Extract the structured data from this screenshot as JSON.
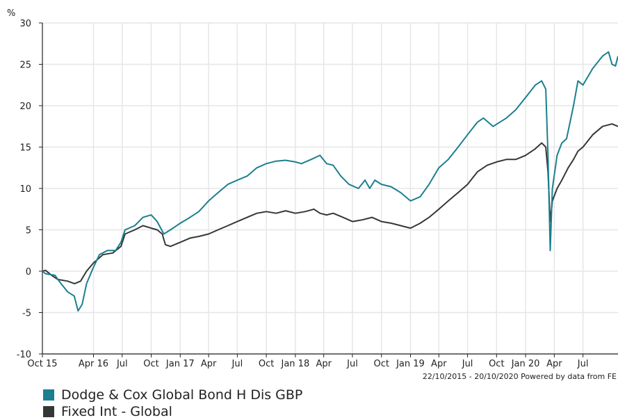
{
  "chart_data": {
    "type": "line",
    "ylabel": "%",
    "ylim": [
      -10,
      30
    ],
    "yticks": [
      -10,
      -5,
      0,
      5,
      10,
      15,
      20,
      25,
      30
    ],
    "xlim": [
      "2015-10-22",
      "2020-10-20"
    ],
    "xticks": [
      {
        "label": "Oct 15",
        "date": "2015-10-22"
      },
      {
        "label": "Apr 16",
        "date": "2016-04-01"
      },
      {
        "label": "Jul",
        "date": "2016-07-01"
      },
      {
        "label": "Oct",
        "date": "2016-10-01"
      },
      {
        "label": "Jan 17",
        "date": "2017-01-01"
      },
      {
        "label": "Apr",
        "date": "2017-04-01"
      },
      {
        "label": "Jul",
        "date": "2017-07-01"
      },
      {
        "label": "Oct",
        "date": "2017-10-01"
      },
      {
        "label": "Jan 18",
        "date": "2018-01-01"
      },
      {
        "label": "Apr",
        "date": "2018-04-01"
      },
      {
        "label": "Jul",
        "date": "2018-07-01"
      },
      {
        "label": "Oct",
        "date": "2018-10-01"
      },
      {
        "label": "Jan 19",
        "date": "2019-01-01"
      },
      {
        "label": "Apr",
        "date": "2019-04-01"
      },
      {
        "label": "Jul",
        "date": "2019-07-01"
      },
      {
        "label": "Oct",
        "date": "2019-10-01"
      },
      {
        "label": "Jan 20",
        "date": "2020-01-01"
      },
      {
        "label": "Apr",
        "date": "2020-04-01"
      },
      {
        "label": "Jul",
        "date": "2020-07-01"
      }
    ],
    "grid": true,
    "footer": "22/10/2015 - 20/10/2020 Powered by data from FE",
    "legend_position": "bottom-left",
    "series": [
      {
        "name": "Dodge & Cox Global Bond H Dis GBP",
        "color": "#1a7f8f",
        "points": [
          [
            "2015-10-22",
            0.0
          ],
          [
            "2015-11-01",
            -0.3
          ],
          [
            "2015-11-15",
            -0.4
          ],
          [
            "2015-12-01",
            -0.5
          ],
          [
            "2015-12-20",
            -1.5
          ],
          [
            "2016-01-10",
            -2.5
          ],
          [
            "2016-01-31",
            -3.0
          ],
          [
            "2016-02-12",
            -4.8
          ],
          [
            "2016-02-25",
            -4.0
          ],
          [
            "2016-03-10",
            -1.5
          ],
          [
            "2016-04-01",
            0.5
          ],
          [
            "2016-04-20",
            2.0
          ],
          [
            "2016-05-15",
            2.5
          ],
          [
            "2016-06-10",
            2.5
          ],
          [
            "2016-06-27",
            3.5
          ],
          [
            "2016-07-10",
            5.0
          ],
          [
            "2016-08-10",
            5.5
          ],
          [
            "2016-09-05",
            6.5
          ],
          [
            "2016-10-01",
            6.8
          ],
          [
            "2016-10-20",
            6.0
          ],
          [
            "2016-11-10",
            4.5
          ],
          [
            "2016-12-01",
            5.0
          ],
          [
            "2017-01-01",
            5.8
          ],
          [
            "2017-02-01",
            6.5
          ],
          [
            "2017-03-01",
            7.2
          ],
          [
            "2017-04-01",
            8.5
          ],
          [
            "2017-05-01",
            9.5
          ],
          [
            "2017-06-01",
            10.5
          ],
          [
            "2017-07-01",
            11.0
          ],
          [
            "2017-08-01",
            11.5
          ],
          [
            "2017-09-01",
            12.5
          ],
          [
            "2017-10-01",
            13.0
          ],
          [
            "2017-11-01",
            13.3
          ],
          [
            "2017-12-01",
            13.4
          ],
          [
            "2018-01-01",
            13.2
          ],
          [
            "2018-01-20",
            13.0
          ],
          [
            "2018-02-20",
            13.5
          ],
          [
            "2018-03-20",
            14.0
          ],
          [
            "2018-04-10",
            13.0
          ],
          [
            "2018-05-01",
            12.8
          ],
          [
            "2018-05-25",
            11.5
          ],
          [
            "2018-06-20",
            10.5
          ],
          [
            "2018-07-20",
            10.0
          ],
          [
            "2018-08-10",
            11.0
          ],
          [
            "2018-08-25",
            10.0
          ],
          [
            "2018-09-10",
            11.0
          ],
          [
            "2018-10-01",
            10.5
          ],
          [
            "2018-11-01",
            10.2
          ],
          [
            "2018-12-01",
            9.5
          ],
          [
            "2019-01-01",
            8.5
          ],
          [
            "2019-02-01",
            9.0
          ],
          [
            "2019-03-01",
            10.5
          ],
          [
            "2019-04-01",
            12.5
          ],
          [
            "2019-05-01",
            13.5
          ],
          [
            "2019-06-01",
            15.0
          ],
          [
            "2019-07-01",
            16.5
          ],
          [
            "2019-08-01",
            18.0
          ],
          [
            "2019-08-20",
            18.5
          ],
          [
            "2019-09-20",
            17.5
          ],
          [
            "2019-11-01",
            18.5
          ],
          [
            "2019-12-01",
            19.5
          ],
          [
            "2020-01-01",
            21.0
          ],
          [
            "2020-02-01",
            22.5
          ],
          [
            "2020-02-21",
            23.0
          ],
          [
            "2020-03-05",
            22.0
          ],
          [
            "2020-03-12",
            14.0
          ],
          [
            "2020-03-19",
            2.5
          ],
          [
            "2020-03-26",
            10.0
          ],
          [
            "2020-04-10",
            14.0
          ],
          [
            "2020-04-25",
            15.5
          ],
          [
            "2020-05-10",
            16.0
          ],
          [
            "2020-06-01",
            20.0
          ],
          [
            "2020-06-15",
            23.0
          ],
          [
            "2020-07-01",
            22.5
          ],
          [
            "2020-08-01",
            24.5
          ],
          [
            "2020-09-01",
            26.0
          ],
          [
            "2020-09-20",
            26.5
          ],
          [
            "2020-10-01",
            25.0
          ],
          [
            "2020-10-12",
            24.8
          ],
          [
            "2020-10-20",
            26.0
          ]
        ]
      },
      {
        "name": "Fixed Int - Global",
        "color": "#333837",
        "points": [
          [
            "2015-10-22",
            0.0
          ],
          [
            "2015-11-01",
            0.1
          ],
          [
            "2015-11-20",
            -0.5
          ],
          [
            "2015-12-10",
            -1.0
          ],
          [
            "2016-01-10",
            -1.2
          ],
          [
            "2016-02-01",
            -1.5
          ],
          [
            "2016-02-20",
            -1.2
          ],
          [
            "2016-03-10",
            0.0
          ],
          [
            "2016-04-01",
            1.0
          ],
          [
            "2016-05-01",
            2.0
          ],
          [
            "2016-06-01",
            2.2
          ],
          [
            "2016-06-27",
            3.0
          ],
          [
            "2016-07-10",
            4.5
          ],
          [
            "2016-08-10",
            5.0
          ],
          [
            "2016-09-05",
            5.5
          ],
          [
            "2016-10-01",
            5.2
          ],
          [
            "2016-10-20",
            5.0
          ],
          [
            "2016-11-05",
            4.5
          ],
          [
            "2016-11-15",
            3.2
          ],
          [
            "2016-12-01",
            3.0
          ],
          [
            "2017-01-01",
            3.5
          ],
          [
            "2017-02-01",
            4.0
          ],
          [
            "2017-03-01",
            4.2
          ],
          [
            "2017-04-01",
            4.5
          ],
          [
            "2017-05-01",
            5.0
          ],
          [
            "2017-06-01",
            5.5
          ],
          [
            "2017-07-01",
            6.0
          ],
          [
            "2017-08-01",
            6.5
          ],
          [
            "2017-09-01",
            7.0
          ],
          [
            "2017-10-01",
            7.2
          ],
          [
            "2017-11-01",
            7.0
          ],
          [
            "2017-12-01",
            7.3
          ],
          [
            "2018-01-01",
            7.0
          ],
          [
            "2018-02-01",
            7.2
          ],
          [
            "2018-03-01",
            7.5
          ],
          [
            "2018-03-20",
            7.0
          ],
          [
            "2018-04-10",
            6.8
          ],
          [
            "2018-05-01",
            7.0
          ],
          [
            "2018-06-01",
            6.5
          ],
          [
            "2018-07-01",
            6.0
          ],
          [
            "2018-08-01",
            6.2
          ],
          [
            "2018-09-01",
            6.5
          ],
          [
            "2018-10-01",
            6.0
          ],
          [
            "2018-11-01",
            5.8
          ],
          [
            "2018-12-01",
            5.5
          ],
          [
            "2019-01-01",
            5.2
          ],
          [
            "2019-02-01",
            5.8
          ],
          [
            "2019-03-01",
            6.5
          ],
          [
            "2019-04-01",
            7.5
          ],
          [
            "2019-05-01",
            8.5
          ],
          [
            "2019-06-01",
            9.5
          ],
          [
            "2019-07-01",
            10.5
          ],
          [
            "2019-08-01",
            12.0
          ],
          [
            "2019-09-01",
            12.8
          ],
          [
            "2019-10-01",
            13.2
          ],
          [
            "2019-11-01",
            13.5
          ],
          [
            "2019-12-01",
            13.5
          ],
          [
            "2020-01-01",
            14.0
          ],
          [
            "2020-02-01",
            14.8
          ],
          [
            "2020-02-21",
            15.5
          ],
          [
            "2020-03-05",
            15.0
          ],
          [
            "2020-03-12",
            12.0
          ],
          [
            "2020-03-19",
            6.0
          ],
          [
            "2020-03-26",
            8.5
          ],
          [
            "2020-04-10",
            10.0
          ],
          [
            "2020-04-25",
            11.0
          ],
          [
            "2020-05-15",
            12.5
          ],
          [
            "2020-06-01",
            13.5
          ],
          [
            "2020-06-15",
            14.5
          ],
          [
            "2020-07-01",
            15.0
          ],
          [
            "2020-08-01",
            16.5
          ],
          [
            "2020-09-01",
            17.5
          ],
          [
            "2020-10-01",
            17.8
          ],
          [
            "2020-10-20",
            17.5
          ]
        ]
      }
    ]
  }
}
